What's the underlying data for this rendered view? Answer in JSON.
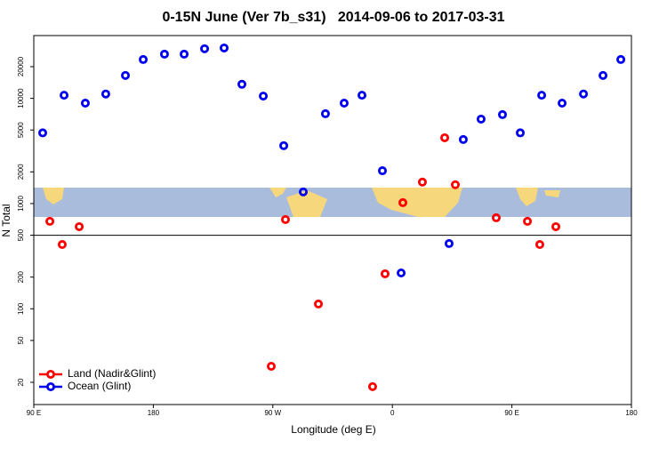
{
  "chart_data": {
    "type": "scatter",
    "title": "0-15N June (Ver 7b_s31)   2014-09-06 to 2017-03-31",
    "x_label": "Longitude (deg E)",
    "y_label": "N Total",
    "log_y": true,
    "xlim": [
      90,
      540
    ],
    "ylim": [
      12.3,
      39500
    ],
    "xticks": [
      {
        "value": 90,
        "label": "90 E"
      },
      {
        "value": 180,
        "label": "180"
      },
      {
        "value": 270,
        "label": "90 W"
      },
      {
        "value": 360,
        "label": "0"
      },
      {
        "value": 450,
        "label": "90 E"
      },
      {
        "value": 540,
        "label": "180"
      }
    ],
    "yticks": [
      20,
      50,
      100,
      200,
      500,
      1000,
      2000,
      5000,
      10000,
      20000
    ],
    "hline": 500,
    "legend_position": "bottom-left",
    "series": [
      {
        "name": "Land (Nadir&Glint)",
        "color": "#ff0000",
        "x": [
          102.1,
          111.4,
          124.2,
          268.8,
          279.5,
          304.3,
          345.1,
          354.5,
          367.9,
          382.6,
          399.4,
          407.4,
          438.2,
          461.7,
          471.0,
          483.1
        ],
        "values": [
          678,
          408,
          603,
          28.4,
          705,
          111,
          18.2,
          215,
          1020,
          1600,
          4220,
          1510,
          733,
          678,
          408,
          603
        ]
      },
      {
        "name": "Ocean (Glint)",
        "color": "#0000ee",
        "x": [
          96.7,
          112.8,
          128.8,
          144.2,
          159.0,
          172.4,
          188.4,
          203.2,
          218.6,
          233.3,
          246.7,
          262.8,
          278.2,
          292.9,
          309.6,
          323.7,
          337.1,
          352.5,
          366.6,
          402.7,
          413.4,
          426.8,
          442.9,
          456.3,
          472.4,
          487.8,
          503.9,
          518.6,
          532.0
        ],
        "values": [
          4700,
          10700,
          9000,
          11000,
          16500,
          23400,
          26300,
          26300,
          29600,
          30100,
          13600,
          10500,
          3550,
          1290,
          7140,
          9000,
          10700,
          2050,
          219,
          417,
          4060,
          6350,
          7000,
          4700,
          10700,
          9000,
          11000,
          16500,
          23400
        ]
      }
    ]
  }
}
